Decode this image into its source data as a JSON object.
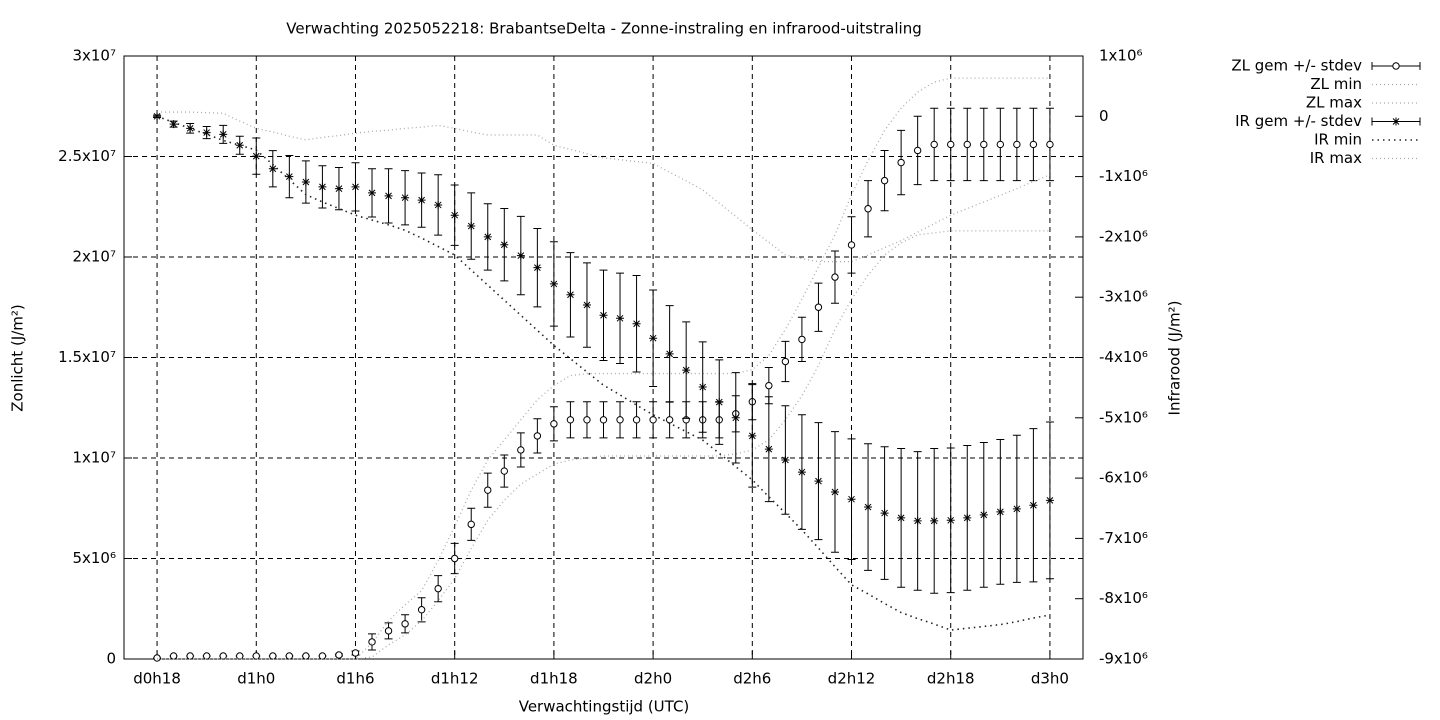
{
  "chart_data": {
    "type": "errorbar",
    "title": "Verwachting 2025052218: BrabantseDelta - Zonne-instraling en infrarood-uitstraling",
    "xlabel": "Verwachtingstijd (UTC)",
    "ylabel": "Zonlicht (J/m²)",
    "y2label": "Infrarood (J/m²)",
    "x": [
      18,
      19,
      20,
      21,
      22,
      23,
      24,
      25,
      26,
      27,
      28,
      29,
      30,
      31,
      32,
      33,
      34,
      35,
      36,
      37,
      38,
      39,
      40,
      41,
      42,
      43,
      44,
      45,
      46,
      47,
      48,
      49,
      50,
      51,
      52,
      53,
      54,
      55,
      56,
      57,
      58,
      59,
      60,
      61,
      62,
      63,
      64,
      65,
      66,
      67,
      68,
      69,
      70,
      71,
      72
    ],
    "xlim": [
      16,
      74
    ],
    "xticks": [
      {
        "value": 18,
        "label": "d0h18"
      },
      {
        "value": 24,
        "label": "d1h0"
      },
      {
        "value": 30,
        "label": "d1h6"
      },
      {
        "value": 36,
        "label": "d1h12"
      },
      {
        "value": 42,
        "label": "d1h18"
      },
      {
        "value": 48,
        "label": "d2h0"
      },
      {
        "value": 54,
        "label": "d2h6"
      },
      {
        "value": 60,
        "label": "d2h12"
      },
      {
        "value": 66,
        "label": "d2h18"
      },
      {
        "value": 72,
        "label": "d3h0"
      }
    ],
    "ylim": [
      0,
      30000000
    ],
    "yticks": [
      0,
      {
        "value": 5000000,
        "label": "5x10⁶"
      },
      {
        "value": 10000000,
        "label": "1x10⁷"
      },
      {
        "value": 15000000,
        "label": "1.5x10⁷"
      },
      {
        "value": 20000000,
        "label": "2x10⁷"
      },
      {
        "value": 25000000,
        "label": "2.5x10⁷"
      },
      {
        "value": 30000000,
        "label": "3x10⁷"
      }
    ],
    "y2lim": [
      -9000000,
      1000000
    ],
    "y2ticks": [
      {
        "value": -9000000,
        "label": "-9x10⁶"
      },
      {
        "value": -8000000,
        "label": "-8x10⁶"
      },
      {
        "value": -7000000,
        "label": "-7x10⁶"
      },
      {
        "value": -6000000,
        "label": "-6x10⁶"
      },
      {
        "value": -5000000,
        "label": "-5x10⁶"
      },
      {
        "value": -4000000,
        "label": "-4x10⁶"
      },
      {
        "value": -3000000,
        "label": "-3x10⁶"
      },
      {
        "value": -2000000,
        "label": "-2x10⁶"
      },
      {
        "value": -1000000,
        "label": "-1x10⁶"
      },
      0,
      {
        "value": 1000000,
        "label": "1x10⁶"
      }
    ],
    "grid": true,
    "legend": "outside-top-right",
    "series": [
      {
        "name": "ZL gem +/- stdev",
        "color": "#000000",
        "style": "errorbars",
        "marker": "circle",
        "values": [
          50000,
          150000,
          150000,
          150000,
          150000,
          150000,
          150000,
          150000,
          150000,
          150000,
          150000,
          200000,
          300000,
          850000,
          1400000,
          1750000,
          2450000,
          3500000,
          5000000,
          6700000,
          8400000,
          9350000,
          10400000,
          11100000,
          11700000,
          11900000,
          11900000,
          11900000,
          11900000,
          11900000,
          11900000,
          11900000,
          11900000,
          11900000,
          11900000,
          12200000,
          12800000,
          13600000,
          14800000,
          15900000,
          17500000,
          19000000,
          20600000,
          22400000,
          23800000,
          24700000,
          25300000,
          25600000,
          25600000,
          25600000,
          25600000,
          25600000,
          25600000,
          25600000,
          25600000
        ],
        "errors": [
          0,
          0,
          0,
          0,
          0,
          0,
          0,
          0,
          0,
          0,
          0,
          50000,
          100000,
          400000,
          400000,
          450000,
          600000,
          650000,
          750000,
          800000,
          850000,
          800000,
          850000,
          850000,
          850000,
          900000,
          900000,
          900000,
          900000,
          900000,
          900000,
          900000,
          900000,
          900000,
          900000,
          900000,
          900000,
          900000,
          1000000,
          1100000,
          1200000,
          1300000,
          1400000,
          1400000,
          1500000,
          1600000,
          1700000,
          1800000,
          1800000,
          1800000,
          1800000,
          1800000,
          1800000,
          1800000,
          1800000
        ]
      },
      {
        "name": "ZL min",
        "color": "#aaaaaa",
        "style": "dots",
        "values": [
          0,
          0,
          0,
          0,
          0,
          0,
          0,
          0,
          0,
          0,
          0,
          0,
          0,
          100000,
          700000,
          1200000,
          1900000,
          2900000,
          4000000,
          5500000,
          6900000,
          7900000,
          8700000,
          9200000,
          9700000,
          9900000,
          10000000,
          10100000,
          10100000,
          10100000,
          10100000,
          10100000,
          10100000,
          10100000,
          10100000,
          10200000,
          10400000,
          10900000,
          11900000,
          13100000,
          14600000,
          16400000,
          17900000,
          19100000,
          20100000,
          20700000,
          21100000,
          21200000,
          21300000,
          21300000,
          21300000,
          21300000,
          21300000,
          21300000,
          21300000
        ]
      },
      {
        "name": "ZL max",
        "color": "#aaaaaa",
        "style": "dots",
        "values": [
          0,
          0,
          0,
          0,
          0,
          0,
          0,
          0,
          0,
          0,
          0,
          0,
          0,
          800000,
          1900000,
          2700000,
          3400000,
          4900000,
          6600000,
          8400000,
          9900000,
          10900000,
          11900000,
          12900000,
          13600000,
          14100000,
          14200000,
          14200000,
          14200000,
          14200000,
          14200000,
          14200000,
          14200000,
          14200000,
          14200000,
          14200000,
          14400000,
          15100000,
          16400000,
          17900000,
          19500000,
          21100000,
          23100000,
          24800000,
          26300000,
          27400000,
          28200000,
          28700000,
          28900000,
          28900000,
          28900000,
          28900000,
          28900000,
          28900000,
          28900000
        ]
      },
      {
        "name": "IR gem +/- stdev",
        "color": "#000000",
        "style": "errorbars",
        "marker": "star",
        "axis": "y2",
        "values": [
          0,
          -130000,
          -200000,
          -270000,
          -300000,
          -480000,
          -660000,
          -870000,
          -1000000,
          -1090000,
          -1170000,
          -1200000,
          -1170000,
          -1270000,
          -1320000,
          -1350000,
          -1390000,
          -1470000,
          -1640000,
          -1820000,
          -2000000,
          -2130000,
          -2310000,
          -2510000,
          -2780000,
          -2960000,
          -3130000,
          -3300000,
          -3350000,
          -3440000,
          -3680000,
          -3940000,
          -4210000,
          -4490000,
          -4740000,
          -5000000,
          -5300000,
          -5520000,
          -5700000,
          -5900000,
          -6050000,
          -6230000,
          -6350000,
          -6480000,
          -6580000,
          -6660000,
          -6710000,
          -6710000,
          -6700000,
          -6660000,
          -6610000,
          -6560000,
          -6510000,
          -6450000,
          -6370000
        ],
        "errors": [
          20000,
          50000,
          80000,
          100000,
          150000,
          150000,
          300000,
          300000,
          350000,
          350000,
          350000,
          350000,
          400000,
          400000,
          450000,
          450000,
          450000,
          500000,
          500000,
          550000,
          550000,
          600000,
          650000,
          650000,
          700000,
          700000,
          700000,
          750000,
          750000,
          800000,
          800000,
          800000,
          800000,
          750000,
          700000,
          750000,
          850000,
          870000,
          900000,
          950000,
          970000,
          1000000,
          1000000,
          1050000,
          1100000,
          1150000,
          1150000,
          1200000,
          1200000,
          1200000,
          1200000,
          1200000,
          1220000,
          1270000,
          1300000
        ]
      },
      {
        "name": "IR min",
        "color": "#222222",
        "style": "dots",
        "axis": "y2",
        "values": [
          0,
          -100000,
          -200000,
          -300000,
          -400000,
          -480000,
          -560000,
          -800000,
          -1050000,
          -1300000,
          -1420000,
          -1530000,
          -1640000,
          -1720000,
          -1800000,
          -1890000,
          -2020000,
          -2160000,
          -2300000,
          -2550000,
          -2800000,
          -3050000,
          -3300000,
          -3550000,
          -3800000,
          -4020000,
          -4240000,
          -4460000,
          -4620000,
          -4790000,
          -4950000,
          -5090000,
          -5230000,
          -5370000,
          -5590000,
          -5810000,
          -6030000,
          -6310000,
          -6580000,
          -6860000,
          -7160000,
          -7470000,
          -7770000,
          -7920000,
          -8080000,
          -8230000,
          -8330000,
          -8420000,
          -8520000,
          -8490000,
          -8460000,
          -8430000,
          -8380000,
          -8320000,
          -8270000
        ]
      },
      {
        "name": "IR max",
        "color": "#aaaaaa",
        "style": "dots",
        "axis": "y2",
        "values": [
          70000,
          70000,
          70000,
          60000,
          50000,
          -80000,
          -200000,
          -260000,
          -330000,
          -390000,
          -350000,
          -320000,
          -280000,
          -250000,
          -230000,
          -200000,
          -180000,
          -150000,
          -200000,
          -260000,
          -310000,
          -310000,
          -310000,
          -310000,
          -480000,
          -550000,
          -620000,
          -690000,
          -720000,
          -750000,
          -780000,
          -930000,
          -1070000,
          -1220000,
          -1440000,
          -1660000,
          -1880000,
          -2090000,
          -2300000,
          -2360000,
          -2410000,
          -2410000,
          -2410000,
          -2300000,
          -2180000,
          -2060000,
          -1920000,
          -1780000,
          -1640000,
          -1530000,
          -1420000,
          -1310000,
          -1200000,
          -1080000,
          -970000
        ]
      }
    ]
  }
}
